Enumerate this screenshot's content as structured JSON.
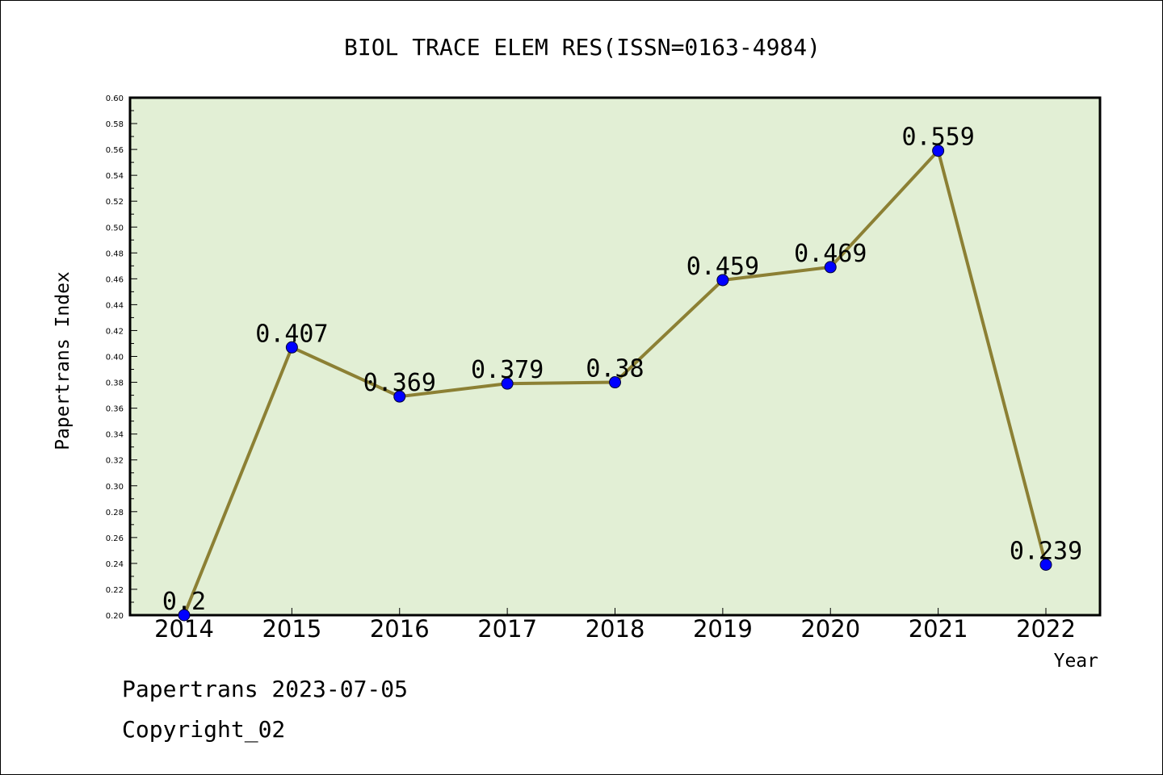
{
  "footer": {
    "line1": "Papertrans 2023-07-05",
    "line2": "Copyright_02"
  },
  "colors": {
    "plot_background": "#e2efd5",
    "line": "#8c8034",
    "marker": "#0000ff"
  },
  "chart_data": {
    "type": "line",
    "title": "BIOL TRACE ELEM RES(ISSN=0163-4984)",
    "xlabel": "Year",
    "ylabel": "Papertrans Index",
    "categories": [
      "2014",
      "2015",
      "2016",
      "2017",
      "2018",
      "2019",
      "2020",
      "2021",
      "2022"
    ],
    "values": [
      0.2,
      0.407,
      0.369,
      0.379,
      0.38,
      0.459,
      0.469,
      0.559,
      0.239
    ],
    "data_labels": [
      "0.2",
      "0.407",
      "0.369",
      "0.379",
      "0.38",
      "0.459",
      "0.469",
      "0.559",
      "0.239"
    ],
    "ylim": [
      0.2,
      0.6
    ],
    "y_ticks": [
      "0.20",
      "0.22",
      "0.24",
      "0.26",
      "0.28",
      "0.30",
      "0.32",
      "0.34",
      "0.36",
      "0.38",
      "0.40",
      "0.42",
      "0.44",
      "0.46",
      "0.48",
      "0.50",
      "0.52",
      "0.54",
      "0.56",
      "0.58",
      "0.60"
    ],
    "grid": false,
    "legend": "none"
  }
}
